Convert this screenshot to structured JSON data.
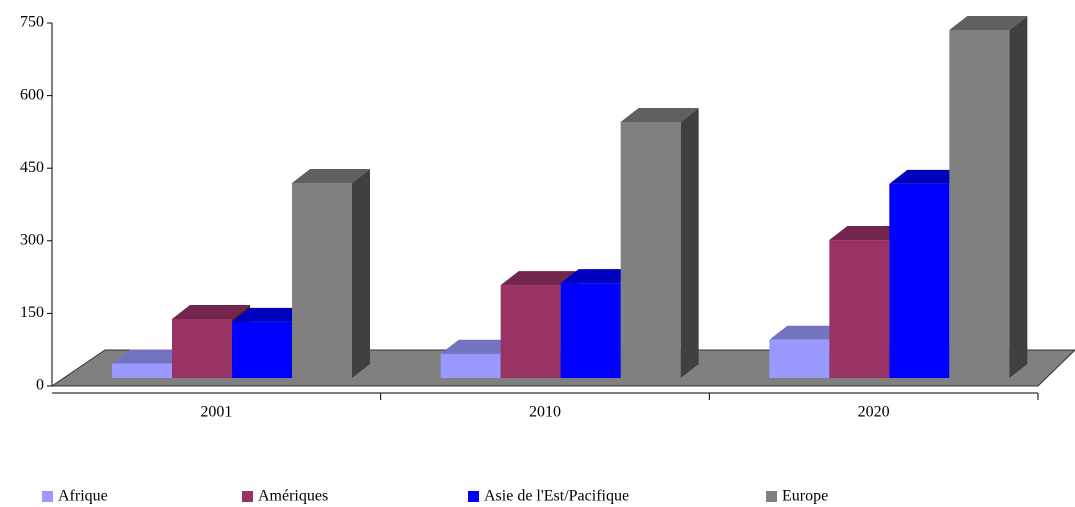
{
  "chart_data": {
    "type": "bar3d",
    "categories": [
      "2001",
      "2010",
      "2020"
    ],
    "series": [
      {
        "name": "Afrique",
        "color": "#9999ff",
        "values": [
          30,
          50,
          79
        ]
      },
      {
        "name": "Amériques",
        "color": "#993366",
        "values": [
          122,
          192,
          285
        ]
      },
      {
        "name": "Asie de l'Est/Pacifique",
        "color": "#0000ff",
        "values": [
          116,
          196,
          401
        ]
      },
      {
        "name": "Europe",
        "color": "#808080",
        "values": [
          403,
          529,
          719
        ]
      }
    ],
    "ylim": [
      0,
      750
    ],
    "yticks": [
      0,
      150,
      300,
      450,
      600,
      750
    ],
    "legend": "bottom"
  }
}
